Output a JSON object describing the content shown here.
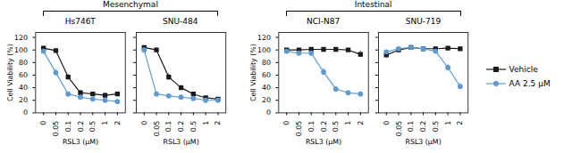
{
  "chart_data": [
    {
      "type": "line",
      "title": "Hs746T",
      "annotations": [
        "Mesenchymal"
      ],
      "x_label": "RSL3 (μM)",
      "y_label": "Cell Viability (%)",
      "categories": [
        "0",
        "0.05",
        "0.1",
        "0.2",
        "0.5",
        "1",
        "2"
      ],
      "ylim": [
        0,
        128
      ],
      "yticks": [
        0,
        20,
        40,
        60,
        80,
        100,
        120
      ],
      "series": [
        {
          "name": "Vehicle",
          "color": "#1a1a1a",
          "marker": "square",
          "values": [
            103,
            99,
            57,
            32,
            30,
            28,
            30
          ],
          "errors": [
            3,
            2,
            4,
            3,
            3,
            3,
            3
          ]
        },
        {
          "name": "AA 2.5 μM",
          "color": "#5b9bd5",
          "marker": "circle",
          "values": [
            98,
            64,
            30,
            25,
            22,
            20,
            18
          ],
          "errors": [
            3,
            5,
            3,
            2,
            2,
            2,
            2
          ]
        }
      ]
    },
    {
      "type": "line",
      "title": "SNU-484",
      "tick_labels": "x",
      "x_label": "RSL3 (μM)",
      "categories": [
        "0",
        "0.05",
        "0.1",
        "0.2",
        "0.5",
        "1",
        "2"
      ],
      "ylim": [
        0,
        128
      ],
      "yticks": [
        0,
        20,
        40,
        60,
        80,
        100,
        120
      ],
      "series": [
        {
          "name": "Vehicle",
          "color": "#1a1a1a",
          "marker": "square",
          "values": [
            104,
            100,
            57,
            40,
            30,
            24,
            22
          ],
          "errors": [
            3,
            3,
            5,
            4,
            3,
            2,
            2
          ]
        },
        {
          "name": "AA 2.5 μM",
          "color": "#5b9bd5",
          "marker": "circle",
          "values": [
            100,
            30,
            27,
            25,
            23,
            20,
            20
          ],
          "errors": [
            3,
            3,
            2,
            2,
            2,
            2,
            2
          ]
        }
      ]
    },
    {
      "type": "line",
      "title": "NCI-N87",
      "annotations": [
        "Intestinal"
      ],
      "x_label": "RSL3 (μM)",
      "y_label": "Cell Viability (%)",
      "categories": [
        "0",
        "0.05",
        "0.1",
        "0.2",
        "0.5",
        "1",
        "2"
      ],
      "ylim": [
        0,
        128
      ],
      "yticks": [
        0,
        20,
        40,
        60,
        80,
        100,
        120
      ],
      "series": [
        {
          "name": "Vehicle",
          "color": "#1a1a1a",
          "marker": "square",
          "values": [
            100,
            100,
            101,
            101,
            101,
            100,
            93
          ],
          "errors": [
            2,
            2,
            2,
            2,
            2,
            2,
            5
          ]
        },
        {
          "name": "AA 2.5 μM",
          "color": "#5b9bd5",
          "marker": "circle",
          "values": [
            98,
            95,
            95,
            65,
            38,
            32,
            30
          ],
          "errors": [
            3,
            3,
            3,
            6,
            3,
            3,
            3
          ]
        }
      ]
    },
    {
      "type": "line",
      "title": "SNU-719",
      "tick_labels": "x",
      "legend": "right",
      "x_label": "RSL3 (μM)",
      "categories": [
        "0",
        "0.05",
        "0.1",
        "0.2",
        "0.5",
        "1",
        "2"
      ],
      "ylim": [
        0,
        128
      ],
      "yticks": [
        0,
        20,
        40,
        60,
        80,
        100,
        120
      ],
      "series": [
        {
          "name": "Vehicle",
          "color": "#1a1a1a",
          "marker": "square",
          "values": [
            92,
            100,
            104,
            102,
            102,
            103,
            102
          ],
          "errors": [
            4,
            3,
            3,
            2,
            2,
            2,
            3
          ]
        },
        {
          "name": "AA 2.5 μM",
          "color": "#5b9bd5",
          "marker": "circle",
          "values": [
            97,
            102,
            104,
            102,
            98,
            72,
            42
          ],
          "errors": [
            3,
            3,
            3,
            3,
            3,
            5,
            5
          ]
        }
      ]
    }
  ]
}
